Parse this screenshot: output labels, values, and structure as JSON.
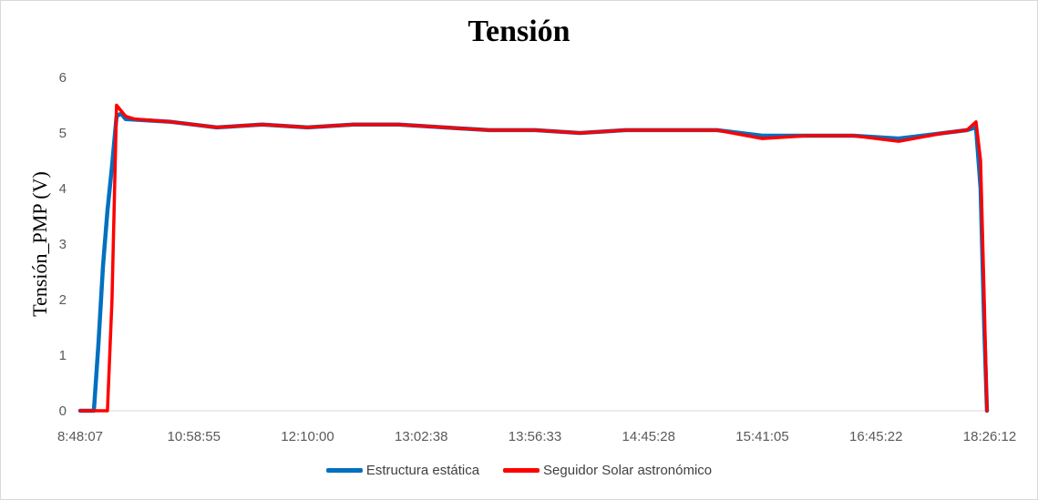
{
  "chart_data": {
    "type": "line",
    "title": "Tensión",
    "ylabel": "Tensión_PMP (V)",
    "xlabel": "",
    "ylim": [
      0,
      6
    ],
    "yticks": [
      0,
      1,
      2,
      3,
      4,
      5,
      6
    ],
    "categories": [
      "8:48:07",
      "10:58:55",
      "12:10:00",
      "13:02:38",
      "13:56:33",
      "14:45:28",
      "15:41:05",
      "16:45:22",
      "18:26:12"
    ],
    "grid": false,
    "legend": "bottom",
    "series": [
      {
        "name": "Estructura estática",
        "color": "#0070C0",
        "x": [
          0,
          0.015,
          0.02,
          0.025,
          0.03,
          0.035,
          0.04,
          0.045,
          0.05,
          0.1,
          0.15,
          0.2,
          0.25,
          0.3,
          0.35,
          0.4,
          0.45,
          0.5,
          0.55,
          0.6,
          0.65,
          0.7,
          0.75,
          0.8,
          0.85,
          0.9,
          0.95,
          0.975,
          0.985,
          0.99,
          0.994,
          0.997
        ],
        "values": [
          0,
          0,
          1.2,
          2.6,
          3.6,
          4.4,
          5.3,
          5.35,
          5.25,
          5.2,
          5.1,
          5.15,
          5.1,
          5.15,
          5.15,
          5.1,
          5.05,
          5.05,
          5.0,
          5.05,
          5.05,
          5.05,
          4.95,
          4.95,
          4.95,
          4.9,
          5.0,
          5.05,
          5.1,
          4.0,
          1.5,
          0
        ]
      },
      {
        "name": "Seguidor Solar astronómico",
        "color": "#FF0000",
        "x": [
          0,
          0.03,
          0.035,
          0.04,
          0.045,
          0.05,
          0.06,
          0.1,
          0.15,
          0.2,
          0.25,
          0.3,
          0.35,
          0.4,
          0.45,
          0.5,
          0.55,
          0.6,
          0.65,
          0.7,
          0.75,
          0.8,
          0.85,
          0.9,
          0.95,
          0.975,
          0.985,
          0.99,
          0.994,
          0.997
        ],
        "values": [
          0,
          0,
          2.0,
          5.5,
          5.4,
          5.3,
          5.25,
          5.2,
          5.1,
          5.15,
          5.1,
          5.15,
          5.15,
          5.1,
          5.05,
          5.05,
          5.0,
          5.05,
          5.05,
          5.05,
          4.9,
          4.95,
          4.95,
          4.85,
          5.0,
          5.05,
          5.2,
          4.5,
          2.0,
          0
        ]
      }
    ]
  }
}
